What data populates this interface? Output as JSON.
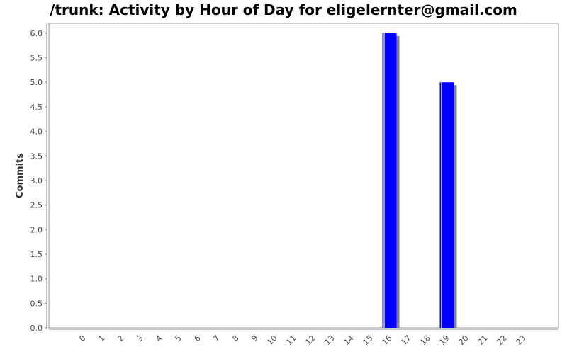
{
  "chart_data": {
    "type": "bar",
    "title": "/trunk: Activity by Hour of Day for eligelernter@gmail.com",
    "xlabel": "",
    "ylabel": "Commits",
    "categories": [
      "0",
      "1",
      "2",
      "3",
      "4",
      "5",
      "6",
      "7",
      "8",
      "9",
      "10",
      "11",
      "12",
      "13",
      "14",
      "15",
      "16",
      "17",
      "18",
      "19",
      "20",
      "21",
      "22",
      "23"
    ],
    "values": [
      0,
      0,
      0,
      0,
      0,
      0,
      0,
      0,
      0,
      0,
      0,
      0,
      0,
      0,
      0,
      0,
      6,
      0,
      0,
      5,
      0,
      0,
      0,
      0
    ],
    "ylim": [
      0,
      6.2
    ],
    "yticks": [
      "0.0",
      "0.5",
      "1.0",
      "1.5",
      "2.0",
      "2.5",
      "3.0",
      "3.5",
      "4.0",
      "4.5",
      "5.0",
      "5.5",
      "6.0"
    ],
    "grid": false,
    "bar_color": "#0000ff",
    "shadow_color": "#808080"
  }
}
